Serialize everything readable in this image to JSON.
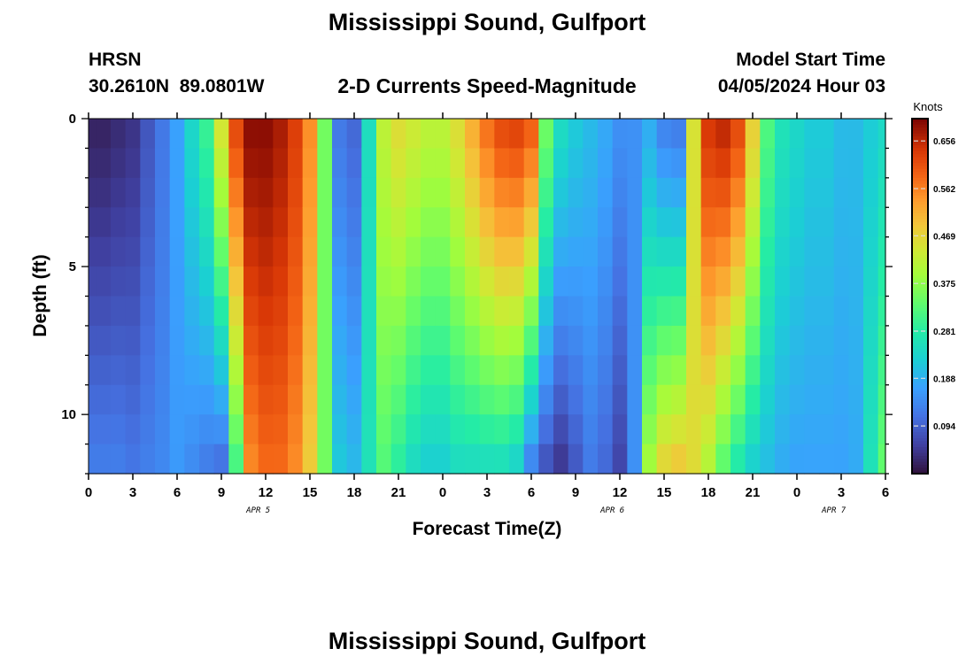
{
  "titles": {
    "main": "Mississippi Sound, Gulfport",
    "station_code": "HRSN",
    "station_coords": "30.2610N  89.0801W",
    "product": "2-D Currents Speed-Magnitude",
    "model_start_label": "Model Start Time",
    "model_start_value": "04/05/2024 Hour 03",
    "footer_repeat": "Mississippi Sound, Gulfport"
  },
  "chart_data": {
    "type": "heatmap",
    "title": "2-D Currents Speed-Magnitude",
    "xlabel": "Forecast Time(Z)",
    "ylabel": "Depth (ft)",
    "x_ticks": [
      "0",
      "3",
      "6",
      "9",
      "12",
      "15",
      "18",
      "21",
      "0",
      "3",
      "6",
      "9",
      "12",
      "15",
      "18",
      "21",
      "0",
      "3",
      "6"
    ],
    "date_labels": [
      {
        "label": "APR 5",
        "hour_index": 11.5
      },
      {
        "label": "APR 6",
        "hour_index": 35.5
      },
      {
        "label": "APR 7",
        "hour_index": 50.5
      }
    ],
    "x_range_hours": [
      0,
      54
    ],
    "y_ticks": [
      "0",
      "5",
      "10"
    ],
    "y_range_ft": [
      0,
      12
    ],
    "y_inverted": true,
    "colorbar": {
      "unit": "Knots",
      "range": [
        0.0,
        0.7
      ],
      "ticks": [
        "0.656",
        "0.562",
        "0.469",
        "0.375",
        "0.281",
        "0.188",
        "0.094"
      ],
      "tick_values": [
        0.656,
        0.562,
        0.469,
        0.375,
        0.281,
        0.188,
        0.094
      ]
    },
    "depth_levels_ft": [
      0.5,
      1.5,
      2.5,
      3.5,
      4.5,
      5.5,
      6.5,
      7.5,
      8.5,
      9.5,
      10.5,
      11.5
    ],
    "hours": [
      0,
      1,
      2,
      3,
      4,
      5,
      6,
      7,
      8,
      9,
      10,
      11,
      12,
      13,
      14,
      15,
      16,
      17,
      18,
      19,
      20,
      21,
      22,
      23,
      24,
      25,
      26,
      27,
      28,
      29,
      30,
      31,
      32,
      33,
      34,
      35,
      36,
      37,
      38,
      39,
      40,
      41,
      42,
      43,
      44,
      45,
      46,
      47,
      48,
      49,
      50,
      51,
      52,
      53,
      54
    ],
    "surface_speed_knots": [
      0.02,
      0.02,
      0.03,
      0.04,
      0.08,
      0.12,
      0.17,
      0.24,
      0.3,
      0.45,
      0.62,
      0.69,
      0.69,
      0.67,
      0.63,
      0.55,
      0.35,
      0.12,
      0.1,
      0.25,
      0.42,
      0.46,
      0.44,
      0.42,
      0.42,
      0.46,
      0.52,
      0.58,
      0.62,
      0.63,
      0.6,
      0.35,
      0.25,
      0.22,
      0.2,
      0.18,
      0.15,
      0.15,
      0.18,
      0.13,
      0.12,
      0.45,
      0.64,
      0.66,
      0.62,
      0.48,
      0.32,
      0.26,
      0.24,
      0.22,
      0.22,
      0.2,
      0.2,
      0.22,
      0.24
    ],
    "bottom_speed_knots": [
      0.13,
      0.13,
      0.13,
      0.12,
      0.13,
      0.14,
      0.16,
      0.14,
      0.12,
      0.1,
      0.3,
      0.55,
      0.58,
      0.58,
      0.55,
      0.48,
      0.35,
      0.22,
      0.2,
      0.26,
      0.32,
      0.28,
      0.24,
      0.22,
      0.22,
      0.24,
      0.24,
      0.24,
      0.24,
      0.22,
      0.12,
      0.07,
      0.04,
      0.08,
      0.12,
      0.1,
      0.06,
      0.15,
      0.4,
      0.48,
      0.5,
      0.46,
      0.4,
      0.32,
      0.26,
      0.22,
      0.2,
      0.18,
      0.17,
      0.17,
      0.17,
      0.17,
      0.18,
      0.26,
      0.34
    ]
  }
}
